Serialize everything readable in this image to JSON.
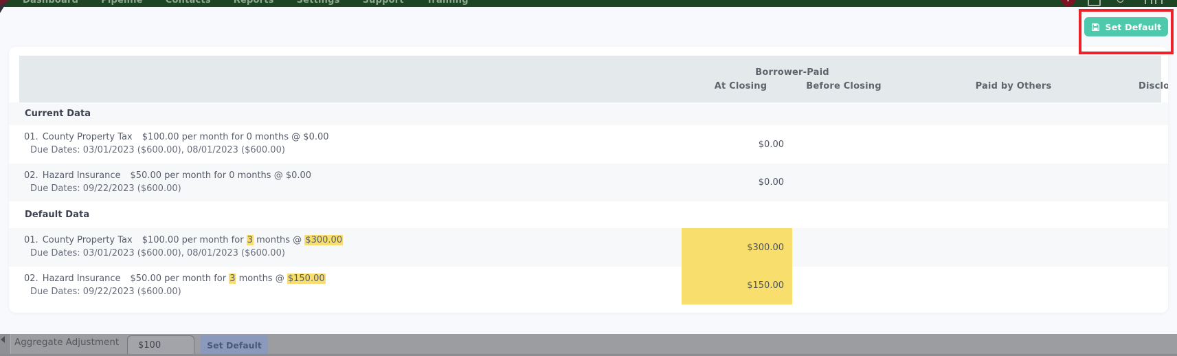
{
  "colors": {
    "nav_green": "#1d4423",
    "accent_teal": "#4fc9ab",
    "annotation_red": "#ec2027",
    "highlight_yellow": "#f8de6c",
    "header_band": "#e4e9ec"
  },
  "nav": {
    "items": [
      {
        "label": "Dashboard"
      },
      {
        "label": "Pipeline"
      },
      {
        "label": "Contacts"
      },
      {
        "label": "Reports"
      },
      {
        "label": "Settings"
      },
      {
        "label": "Support"
      },
      {
        "label": "Training"
      }
    ],
    "alert_badge": "!"
  },
  "toolbar": {
    "set_default_label": "Set Default"
  },
  "table": {
    "group_header": "Borrower-Paid",
    "columns": {
      "at_closing": "At Closing",
      "before_closing": "Before Closing",
      "paid_by_others": "Paid by Others",
      "disclosed": "Disclosed"
    },
    "sections": [
      {
        "title": "Current Data",
        "rows": [
          {
            "num": "01.",
            "name": "County Property Tax",
            "detail_parts": [
              {
                "t": "$100.00 per month for 0 months @ $0.00"
              }
            ],
            "due": "Due Dates: 03/01/2023 ($600.00), 08/01/2023 ($600.00)",
            "at_closing": "$0.00",
            "cell_hl": false
          },
          {
            "num": "02.",
            "name": "Hazard Insurance",
            "detail_parts": [
              {
                "t": "$50.00 per month for 0 months @ $0.00"
              }
            ],
            "due": "Due Dates: 09/22/2023 ($600.00)",
            "at_closing": "$0.00",
            "cell_hl": false
          }
        ]
      },
      {
        "title": "Default Data",
        "rows": [
          {
            "num": "01.",
            "name": "County Property Tax",
            "detail_parts": [
              {
                "t": "$100.00 per month for "
              },
              {
                "t": "3",
                "hl": true
              },
              {
                "t": " months @ "
              },
              {
                "t": "$300.00",
                "hl": true
              }
            ],
            "due": "Due Dates: 03/01/2023 ($600.00), 08/01/2023 ($600.00)",
            "at_closing": "$300.00",
            "cell_hl": true
          },
          {
            "num": "02.",
            "name": "Hazard Insurance",
            "detail_parts": [
              {
                "t": "$50.00 per month for "
              },
              {
                "t": "3",
                "hl": true
              },
              {
                "t": " months @ "
              },
              {
                "t": "$150.00",
                "hl": true
              }
            ],
            "due": "Due Dates: 09/22/2023 ($600.00)",
            "at_closing": "$150.00",
            "cell_hl": true
          }
        ]
      }
    ]
  },
  "footer": {
    "label": "Aggregate Adjustment",
    "input_value": "$100",
    "button_label": "Set Default"
  }
}
